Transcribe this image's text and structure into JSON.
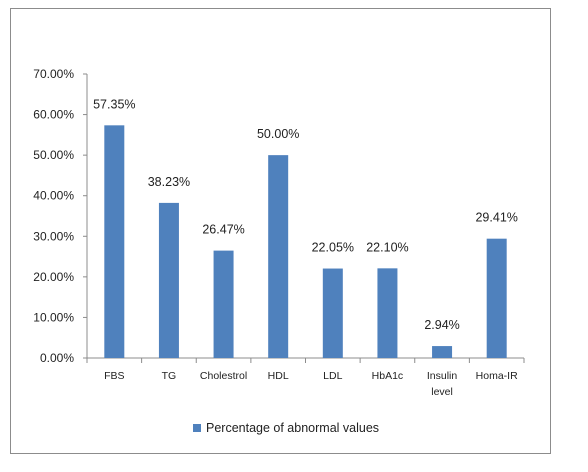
{
  "chart_data": {
    "type": "bar",
    "categories": [
      "FBS",
      "TG",
      "Cholestrol",
      "HDL",
      "LDL",
      "HbA1c",
      "Insulin\nlevel",
      "Homa-IR"
    ],
    "series": [
      {
        "name": "Percentage of abnormal values",
        "values": [
          57.35,
          38.23,
          26.47,
          50.0,
          22.05,
          22.1,
          2.94,
          29.41
        ],
        "labels": [
          "57.35%",
          "38.23%",
          "26.47%",
          "50.00%",
          "22.05%",
          "22.10%",
          "2.94%",
          "29.41%"
        ]
      }
    ],
    "ylim": [
      0,
      70
    ],
    "yticks": [
      0,
      10,
      20,
      30,
      40,
      50,
      60,
      70
    ],
    "ytick_labels": [
      "0.00%",
      "10.00%",
      "20.00%",
      "30.00%",
      "40.00%",
      "50.00%",
      "60.00%",
      "70.00%"
    ],
    "grid": false,
    "legend_position": "bottom",
    "bar_color": "#4f81bd"
  }
}
